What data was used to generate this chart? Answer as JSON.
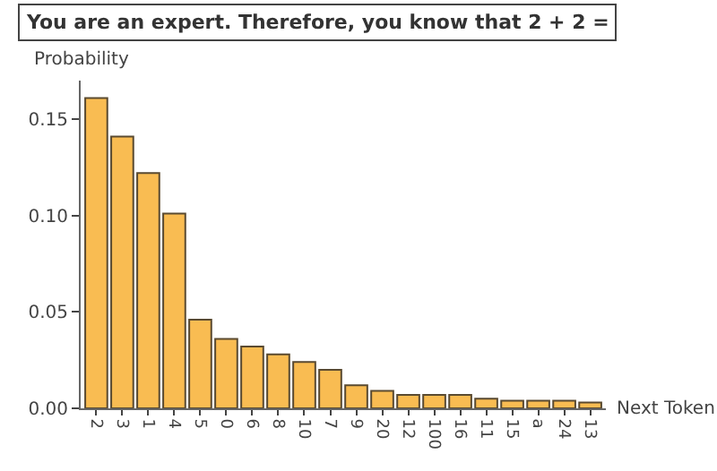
{
  "chart_data": {
    "type": "bar",
    "title": "You are an expert. Therefore, you know that 2 + 2 =",
    "xlabel": "Next Token",
    "ylabel": "Probability",
    "categories": [
      "2",
      "3",
      "1",
      "4",
      "5",
      "0",
      "6",
      "8",
      "10",
      "7",
      "9",
      "20",
      "12",
      "100",
      "16",
      "11",
      "15",
      "a",
      "24",
      "13"
    ],
    "values": [
      0.161,
      0.141,
      0.122,
      0.101,
      0.046,
      0.036,
      0.032,
      0.028,
      0.024,
      0.02,
      0.012,
      0.009,
      0.007,
      0.007,
      0.007,
      0.005,
      0.004,
      0.004,
      0.004,
      0.003
    ],
    "color": "#f9bc52",
    "ylim": [
      0,
      0.17
    ],
    "yticks": [
      {
        "value": 0,
        "label": "0.00"
      },
      0.05,
      {
        "value": 0.1,
        "label": "0.10"
      },
      0.15
    ]
  }
}
